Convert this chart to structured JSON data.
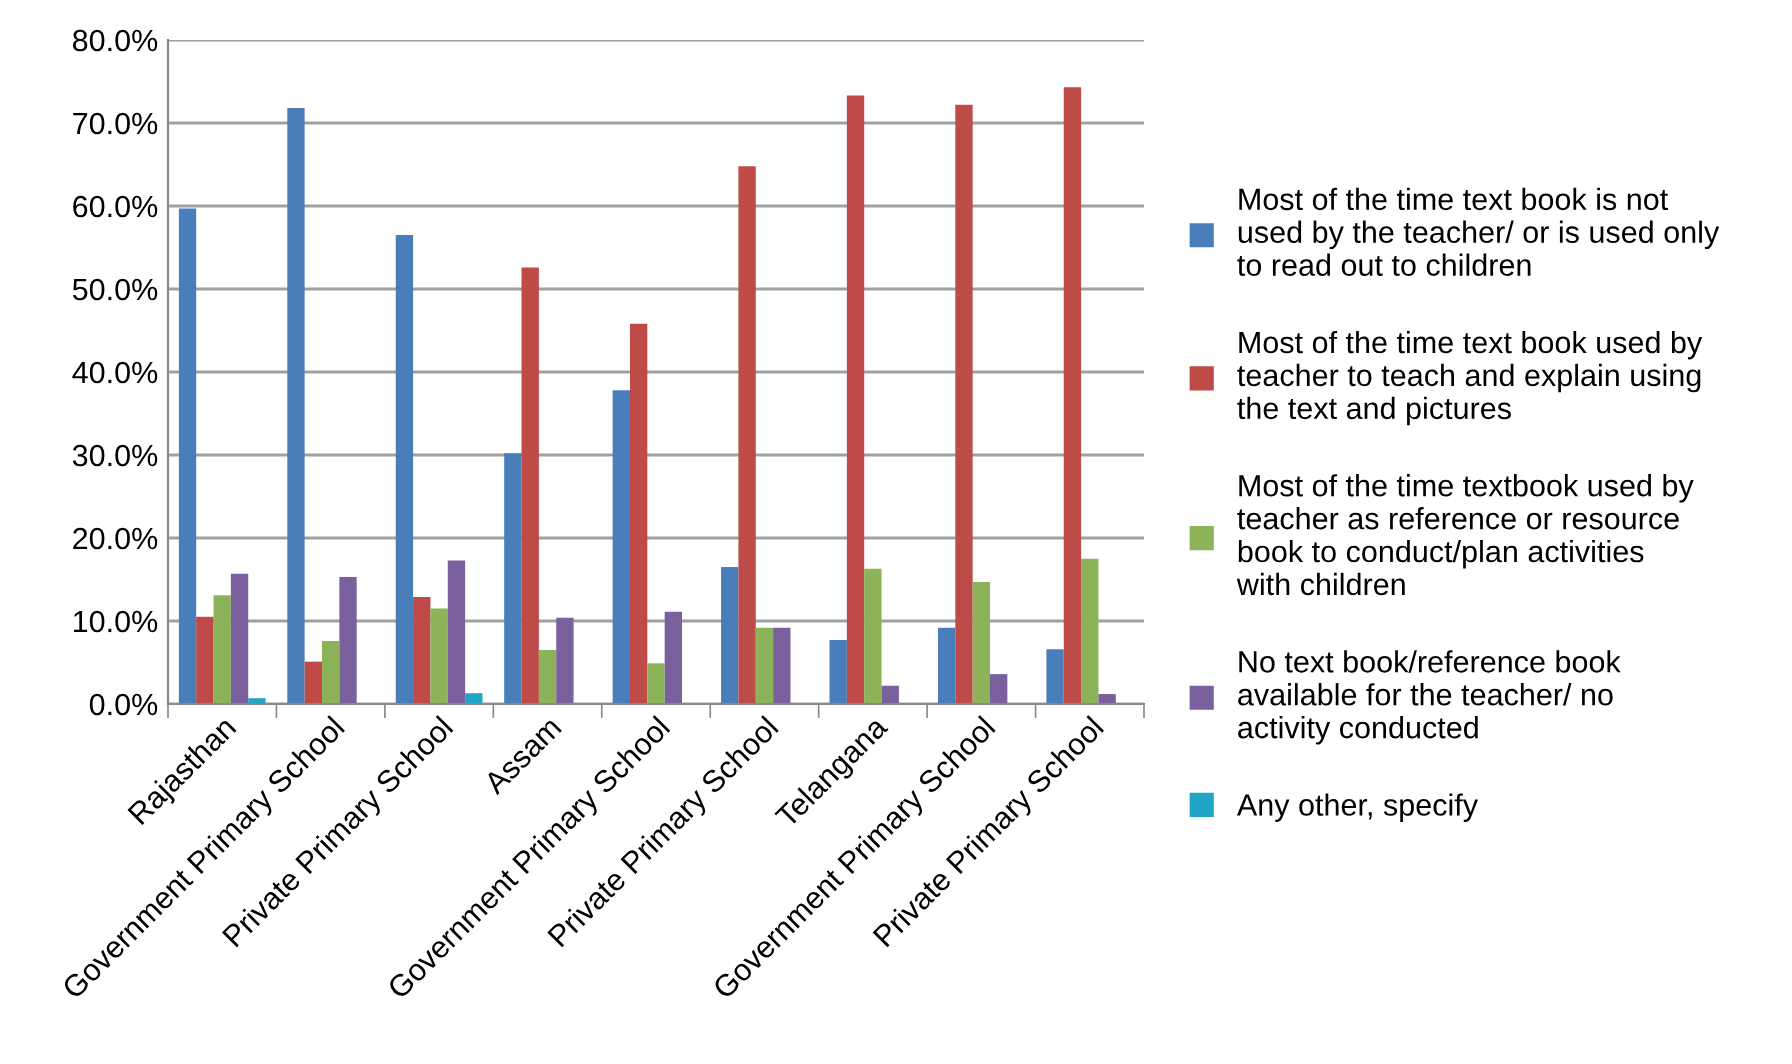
{
  "chart_data": {
    "type": "bar",
    "categories": [
      "Rajasthan",
      "Government Primary School",
      "Private Primary School",
      "Assam",
      "Government Primary School",
      "Private Primary School",
      "Telangana",
      "Government Primary School",
      "Private Primary School"
    ],
    "series": [
      {
        "name": "Most of the time text book is not\nused by the teacher/ or is used only\nto read out to children",
        "color": "#4a7ebb",
        "values": [
          59.7,
          71.8,
          56.5,
          30.2,
          37.8,
          16.5,
          7.7,
          9.2,
          6.6
        ]
      },
      {
        "name": "Most of the time text book used by\nteacher to teach and explain using\nthe text and pictures",
        "color": "#be4b48",
        "values": [
          10.5,
          5.1,
          12.9,
          52.6,
          45.8,
          64.8,
          73.3,
          72.2,
          74.3
        ]
      },
      {
        "name": "Most of the time textbook used by\nteacher as reference or resource\nbook to conduct/plan activities\nwith children",
        "color": "#8cb35a",
        "values": [
          13.1,
          7.6,
          11.5,
          6.5,
          4.9,
          9.2,
          16.3,
          14.7,
          17.5
        ]
      },
      {
        "name": "No text book/reference book\navailable for the teacher/ no\nactivity conducted",
        "color": "#7a619e",
        "values": [
          15.7,
          15.3,
          17.3,
          10.4,
          11.1,
          9.2,
          2.2,
          3.6,
          1.2
        ]
      },
      {
        "name": "Any other, specify",
        "color": "#20a6c4",
        "values": [
          0.7,
          null,
          1.3,
          null,
          null,
          null,
          null,
          null,
          null
        ]
      }
    ],
    "ylim": [
      0,
      80
    ],
    "yticks": [
      {
        "value": 0,
        "label": "0.0%"
      },
      {
        "value": 10,
        "label": "10.0%"
      },
      {
        "value": 20,
        "label": "20.0%"
      },
      {
        "value": 30,
        "label": "30.0%"
      },
      {
        "value": 40,
        "label": "40.0%"
      },
      {
        "value": 50,
        "label": "50.0%"
      },
      {
        "value": 60,
        "label": "60.0%"
      },
      {
        "value": 70,
        "label": "70.0%"
      },
      {
        "value": 80,
        "label": "80.0%"
      }
    ],
    "grid": "y",
    "legend": "right"
  }
}
